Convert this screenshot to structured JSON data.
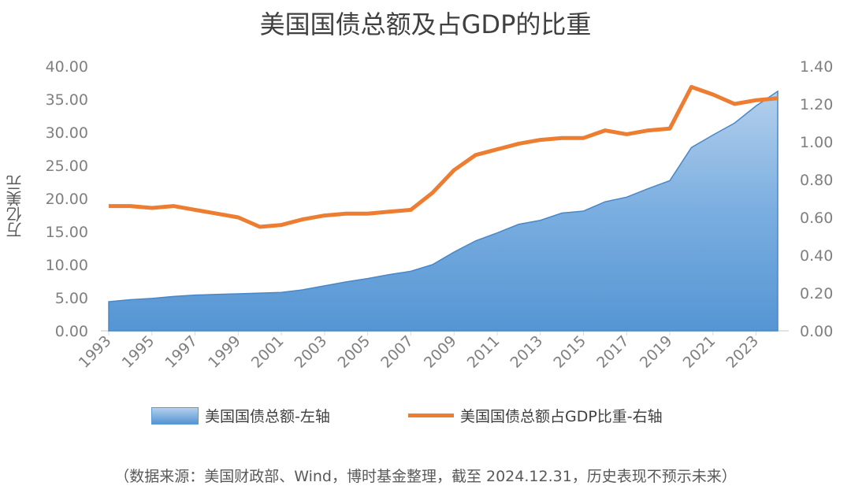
{
  "chart_data": {
    "type": "area+line",
    "title": "美国国债总额及占GDP的比重",
    "ylabel": "万亿美元",
    "y2label": "",
    "ylim": [
      0,
      40
    ],
    "y2lim": [
      0,
      1.4
    ],
    "yticks": [
      "0.00",
      "5.00",
      "10.00",
      "15.00",
      "20.00",
      "25.00",
      "30.00",
      "35.00",
      "40.00"
    ],
    "y2ticks": [
      "0.00",
      "0.20",
      "0.40",
      "0.60",
      "0.80",
      "1.00",
      "1.20",
      "1.40"
    ],
    "xticks": [
      "1993",
      "1995",
      "1997",
      "1999",
      "2001",
      "2003",
      "2005",
      "2007",
      "2009",
      "2011",
      "2013",
      "2015",
      "2017",
      "2019",
      "2021",
      "2023"
    ],
    "x": [
      1993,
      1994,
      1995,
      1996,
      1997,
      1998,
      1999,
      2000,
      2001,
      2002,
      2003,
      2004,
      2005,
      2006,
      2007,
      2008,
      2009,
      2010,
      2011,
      2012,
      2013,
      2014,
      2015,
      2016,
      2017,
      2018,
      2019,
      2020,
      2021,
      2022,
      2023,
      2024
    ],
    "series": [
      {
        "name": "美国国债总额-左轴",
        "type": "area",
        "axis": "left",
        "color": "#5b9bd5",
        "values": [
          4.4,
          4.7,
          4.9,
          5.2,
          5.4,
          5.5,
          5.6,
          5.7,
          5.8,
          6.2,
          6.8,
          7.4,
          7.9,
          8.5,
          9.0,
          10.0,
          11.9,
          13.6,
          14.8,
          16.1,
          16.7,
          17.8,
          18.1,
          19.5,
          20.2,
          21.5,
          22.7,
          27.7,
          29.6,
          31.4,
          34.0,
          36.2
        ]
      },
      {
        "name": "美国国债总额占GDP比重-右轴",
        "type": "line",
        "axis": "right",
        "color": "#ed7d31",
        "values": [
          0.66,
          0.66,
          0.65,
          0.66,
          0.64,
          0.62,
          0.6,
          0.55,
          0.56,
          0.59,
          0.61,
          0.62,
          0.62,
          0.63,
          0.64,
          0.73,
          0.85,
          0.93,
          0.96,
          0.99,
          1.01,
          1.02,
          1.02,
          1.06,
          1.04,
          1.06,
          1.07,
          1.29,
          1.25,
          1.2,
          1.22,
          1.23
        ]
      }
    ],
    "grid": false,
    "legend": "bottom"
  },
  "source": "（数据来源：美国财政部、Wind，博时基金整理，截至 2024.12.31，历史表现不预示未来）"
}
